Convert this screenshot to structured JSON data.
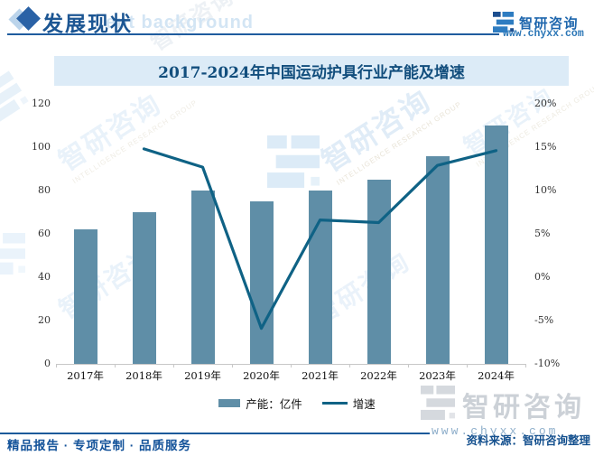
{
  "header": {
    "section_title": "发展现状",
    "section_watermark": "ent background",
    "brand": {
      "name": "智研咨询",
      "website": "www.chyxx.com"
    }
  },
  "chart": {
    "title": "2017-2024年中国运动护具行业产能及增速",
    "legend": {
      "bar_label": "产能：亿件",
      "line_label": "增速"
    }
  },
  "chart_data": {
    "type": "combo",
    "title": "2017-2024年中国运动护具行业产能及增速",
    "categories": [
      "2017年",
      "2018年",
      "2019年",
      "2020年",
      "2021年",
      "2022年",
      "2023年",
      "2024年"
    ],
    "series": [
      {
        "name": "产能：亿件",
        "type": "bar",
        "axis": "left",
        "unit": "亿件",
        "values": [
          62,
          70,
          80,
          75,
          80,
          85,
          96,
          110
        ]
      },
      {
        "name": "增速",
        "type": "line",
        "axis": "right",
        "unit": "%",
        "values": [
          null,
          14.8,
          12.7,
          -5.9,
          6.6,
          6.3,
          12.9,
          14.6
        ]
      }
    ],
    "left_axis": {
      "ticks": [
        "0",
        "20",
        "40",
        "60",
        "80",
        "100",
        "120"
      ],
      "lim": [
        0,
        120
      ]
    },
    "right_axis": {
      "ticks": [
        "-10%",
        "-5%",
        "0%",
        "5%",
        "10%",
        "15%",
        "20%"
      ],
      "lim": [
        -10,
        20
      ]
    },
    "legend_position": "bottom",
    "grid": false,
    "colors": {
      "bar": "#5F8EA7",
      "line": "#0F6285"
    }
  },
  "footer": {
    "tagline": "精品报告 · 专项定制 · 品质服务",
    "source": "资料来源：智研咨询整理"
  },
  "watermark": {
    "cn": "智研咨询",
    "en": "INTELLIGENCE RESEARCH GROUP",
    "url": "www.chyxx.com"
  }
}
